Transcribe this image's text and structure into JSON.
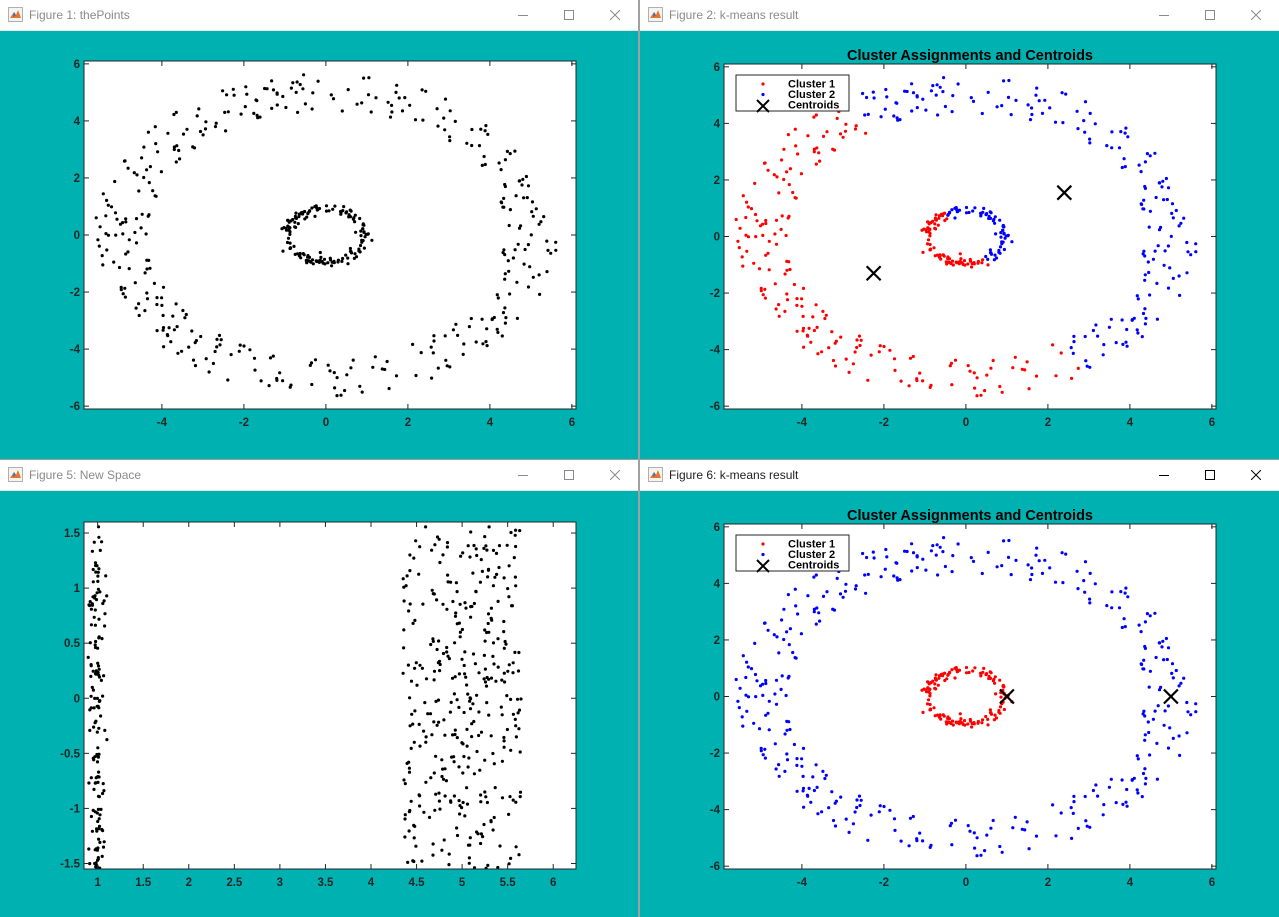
{
  "windows": [
    {
      "id": "w1",
      "title": "Figure 1: thePoints",
      "active": false,
      "chart_key": 0
    },
    {
      "id": "w2",
      "title": "Figure 2: k-means result",
      "active": false,
      "chart_key": 1
    },
    {
      "id": "w5",
      "title": "Figure 5: New Space",
      "active": false,
      "chart_key": 2
    },
    {
      "id": "w6",
      "title": "Figure 6: k-means result",
      "active": true,
      "chart_key": 3
    }
  ],
  "icons": {
    "app": "matlab-icon",
    "minimize": "minimize-icon",
    "maximize": "maximize-icon",
    "close": "close-icon"
  },
  "colors": {
    "figure_bg": "#00b1b1",
    "axes_bg": "#ffffff",
    "cluster1": "#ff0000",
    "cluster2": "#0000ff",
    "points": "#000000",
    "centroid": "#000000"
  },
  "chart_data": [
    {
      "type": "scatter",
      "title": "",
      "xlabel": "",
      "ylabel": "",
      "xlim": [
        -5.9,
        6.1
      ],
      "ylim": [
        -6.1,
        6.1
      ],
      "xticks": [
        -4,
        -2,
        0,
        2,
        4,
        6
      ],
      "yticks": [
        -6,
        -4,
        -2,
        0,
        2,
        4,
        6
      ],
      "grid": false,
      "legend": null,
      "dataset": {
        "shape": "two-rings",
        "inner_ring": {
          "radius_x": 0.95,
          "radius_y": 0.95,
          "noise": 0.08,
          "n": 150
        },
        "outer_ring": {
          "radius_x": 5.0,
          "radius_y": 5.0,
          "noise": 0.65,
          "n": 360
        }
      },
      "series": [
        {
          "marker": "dot",
          "color": "#000000",
          "points": "inner_ring+outer_ring"
        }
      ]
    },
    {
      "type": "scatter",
      "title": "Cluster Assignments and Centroids",
      "xlabel": "",
      "ylabel": "",
      "xlim": [
        -5.9,
        6.1
      ],
      "ylim": [
        -6.1,
        6.1
      ],
      "xticks": [
        -4,
        -2,
        0,
        2,
        4,
        6
      ],
      "yticks": [
        -6,
        -4,
        -2,
        0,
        2,
        4,
        6
      ],
      "grid": false,
      "legend": {
        "placement": "top-left",
        "entries": [
          "Cluster 1",
          "Cluster 2",
          "Centroids"
        ]
      },
      "dataset": {
        "shape": "two-rings",
        "inner_ring": {
          "radius_x": 0.95,
          "radius_y": 0.95,
          "noise": 0.08,
          "n": 150
        },
        "outer_ring": {
          "radius_x": 5.0,
          "radius_y": 5.0,
          "noise": 0.65,
          "n": 360
        }
      },
      "assignment": "split-by-line-through-origin",
      "split_line": {
        "nx": 0.86,
        "ny": 0.51
      },
      "series": [
        {
          "name": "Cluster 1",
          "marker": "dot",
          "color": "#ff0000"
        },
        {
          "name": "Cluster 2",
          "marker": "dot",
          "color": "#0000ff"
        }
      ],
      "centroids": [
        {
          "x": -2.25,
          "y": -1.3
        },
        {
          "x": 2.4,
          "y": 1.55
        }
      ]
    },
    {
      "type": "scatter",
      "title": "",
      "xlabel": "",
      "ylabel": "",
      "xlim": [
        0.85,
        6.25
      ],
      "ylim": [
        -1.55,
        1.6
      ],
      "xticks": [
        1,
        1.5,
        2,
        2.5,
        3,
        3.5,
        4,
        4.5,
        5,
        5.5,
        6
      ],
      "yticks": [
        -1.5,
        -1,
        -0.5,
        0,
        0.5,
        1,
        1.5
      ],
      "grid": false,
      "legend": null,
      "dataset": {
        "shape": "polar-space",
        "inner_band": {
          "x_center": 1.0,
          "x_spread": 0.1,
          "n": 150
        },
        "outer_band": {
          "x_center": 5.0,
          "x_spread": 0.65,
          "n": 360
        },
        "y_range": [
          -1.57,
          1.57
        ]
      },
      "series": [
        {
          "marker": "dot",
          "color": "#000000",
          "points": "inner_band+outer_band"
        }
      ]
    },
    {
      "type": "scatter",
      "title": "Cluster Assignments and Centroids",
      "xlabel": "",
      "ylabel": "",
      "xlim": [
        -5.9,
        6.1
      ],
      "ylim": [
        -6.1,
        6.1
      ],
      "xticks": [
        -4,
        -2,
        0,
        2,
        4,
        6
      ],
      "yticks": [
        -6,
        -4,
        -2,
        0,
        2,
        4,
        6
      ],
      "grid": false,
      "legend": {
        "placement": "top-left",
        "entries": [
          "Cluster 1",
          "Cluster 2",
          "Centroids"
        ]
      },
      "dataset": {
        "shape": "two-rings",
        "inner_ring": {
          "radius_x": 0.95,
          "radius_y": 0.95,
          "noise": 0.08,
          "n": 150
        },
        "outer_ring": {
          "radius_x": 5.0,
          "radius_y": 5.0,
          "noise": 0.65,
          "n": 360
        }
      },
      "assignment": "inner-vs-outer",
      "series": [
        {
          "name": "Cluster 1",
          "marker": "dot",
          "color": "#ff0000"
        },
        {
          "name": "Cluster 2",
          "marker": "dot",
          "color": "#0000ff"
        }
      ],
      "centroids": [
        {
          "x": 1.0,
          "y": 0.0
        },
        {
          "x": 5.0,
          "y": 0.0
        }
      ]
    }
  ]
}
